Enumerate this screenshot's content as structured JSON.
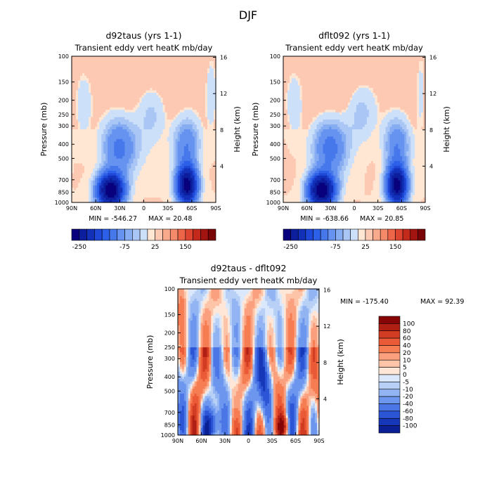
{
  "figure": {
    "title": "DJF"
  },
  "chart_data": [
    {
      "type": "heatmap",
      "title": "d92taus (yrs 1-1)",
      "subtitle": "Transient eddy vert heatK mb/day",
      "ylabel": "Pressure (mb)",
      "y2label": "Height (km)",
      "x_ticks": [
        "90N",
        "60N",
        "30N",
        "0",
        "30S",
        "60S",
        "90S"
      ],
      "y_ticks": [
        "100",
        "150",
        "200",
        "250",
        "300",
        "400",
        "500",
        "700",
        "850",
        "1000"
      ],
      "y2_ticks": [
        "16",
        "12",
        "8",
        "4"
      ],
      "min_label": "MIN = -546.27",
      "max_label": "MAX = 20.48",
      "colorbar": {
        "labels": [
          "-250",
          "-75",
          "25",
          "150"
        ],
        "colors": [
          "#08007c",
          "#0d1e9c",
          "#1230b8",
          "#1f48d8",
          "#2d60e8",
          "#4678ec",
          "#6692f0",
          "#86acf2",
          "#aac6f5",
          "#cde0fa",
          "#ffe7d4",
          "#fdc9b2",
          "#f9a98c",
          "#f48a6a",
          "#ec6548",
          "#de4530",
          "#c42a1c",
          "#a11410",
          "#7a0506"
        ]
      }
    },
    {
      "type": "heatmap",
      "title": "dflt092 (yrs 1-1)",
      "subtitle": "Transient eddy vert heatK mb/day",
      "ylabel": "Pressure (mb)",
      "y2label": "Height (km)",
      "x_ticks": [
        "90N",
        "60N",
        "30N",
        "0",
        "30S",
        "60S",
        "90S"
      ],
      "y_ticks": [
        "100",
        "150",
        "200",
        "250",
        "300",
        "400",
        "500",
        "700",
        "850",
        "1000"
      ],
      "y2_ticks": [
        "16",
        "12",
        "8",
        "4"
      ],
      "min_label": "MIN = -638.66",
      "max_label": "MAX = 20.85",
      "colorbar": {
        "labels": [
          "-250",
          "-75",
          "25",
          "150"
        ],
        "colors": [
          "#08007c",
          "#0d1e9c",
          "#1230b8",
          "#1f48d8",
          "#2d60e8",
          "#4678ec",
          "#6692f0",
          "#86acf2",
          "#aac6f5",
          "#cde0fa",
          "#ffe7d4",
          "#fdc9b2",
          "#f9a98c",
          "#f48a6a",
          "#ec6548",
          "#de4530",
          "#c42a1c",
          "#a11410",
          "#7a0506"
        ]
      }
    },
    {
      "type": "heatmap",
      "title": "d92taus - dflt092",
      "subtitle": "Transient eddy vert heatK mb/day",
      "ylabel": "Pressure (mb)",
      "y2label": "Height (km)",
      "x_ticks": [
        "90N",
        "60N",
        "30N",
        "0",
        "30S",
        "60S",
        "90S"
      ],
      "y_ticks": [
        "100",
        "150",
        "200",
        "250",
        "300",
        "400",
        "500",
        "700",
        "850",
        "1000"
      ],
      "y2_ticks": [
        "16",
        "12",
        "8",
        "4"
      ],
      "min_label": "MIN = -175.40",
      "max_label": "MAX = 92.39",
      "colorbar": {
        "labels": [
          "100",
          "80",
          "60",
          "40",
          "20",
          "10",
          "5",
          "0",
          "-5",
          "-10",
          "-20",
          "-40",
          "-60",
          "-80",
          "-100"
        ],
        "colors": [
          "#860607",
          "#b01f14",
          "#d23c22",
          "#ea5a36",
          "#f67c52",
          "#fba07e",
          "#fdc4a8",
          "#ffe6d6",
          "#dbe8fb",
          "#b8d0f6",
          "#92b4f2",
          "#6d96ee",
          "#4a76e6",
          "#2c55d6",
          "#1638b8",
          "#0a1f94"
        ]
      }
    }
  ]
}
